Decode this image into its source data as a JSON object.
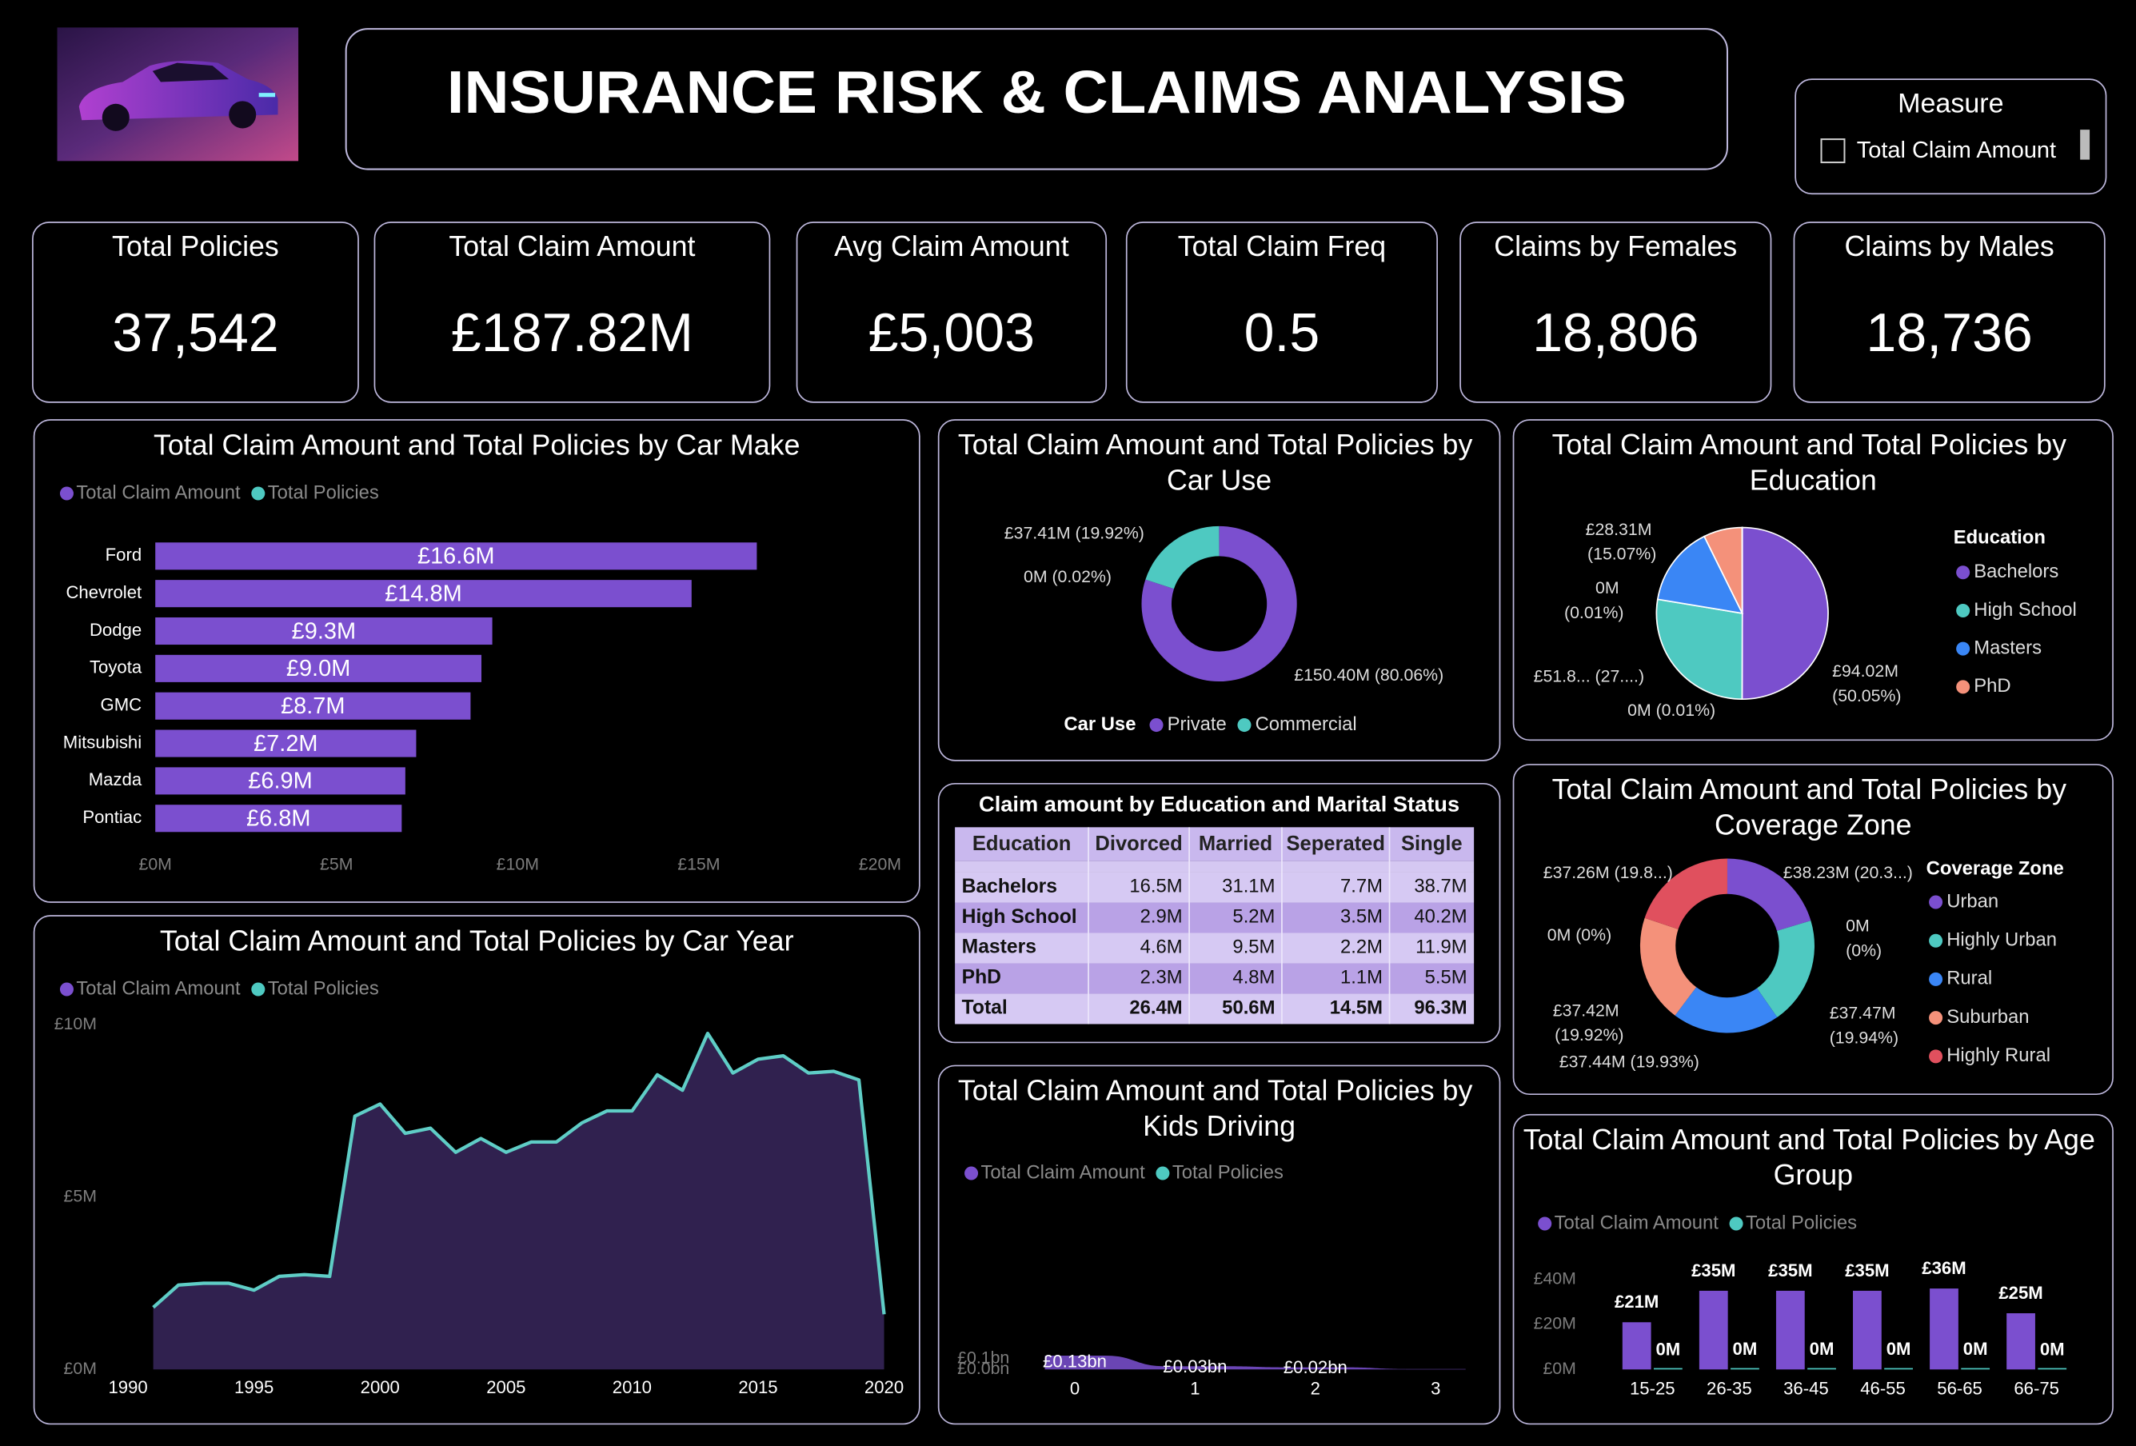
{
  "header": {
    "title": "INSURANCE RISK & CLAIMS ANALYSIS"
  },
  "slicer": {
    "title": "Measure",
    "options": [
      "Total Claim Amount"
    ]
  },
  "kpis": [
    {
      "label": "Total Policies",
      "value": "37,542"
    },
    {
      "label": "Total Claim Amount",
      "value": "£187.82M"
    },
    {
      "label": "Avg Claim Amount",
      "value": "£5,003"
    },
    {
      "label": "Total Claim Freq",
      "value": "0.5"
    },
    {
      "label": "Claims by Females",
      "value": "18,806"
    },
    {
      "label": "Claims by Males",
      "value": "18,736"
    }
  ],
  "table": {
    "title": "Claim amount by Education and Marital Status",
    "columns": [
      "Education",
      "Divorced",
      "Married",
      "Seperated",
      "Single"
    ],
    "rows": [
      [
        "Bachelors",
        "16.5M",
        "31.1M",
        "7.7M",
        "38.7M"
      ],
      [
        "High School",
        "2.9M",
        "5.2M",
        "3.5M",
        "40.2M"
      ],
      [
        "Masters",
        "4.6M",
        "9.5M",
        "2.2M",
        "11.9M"
      ],
      [
        "PhD",
        "2.3M",
        "4.8M",
        "1.1M",
        "5.5M"
      ],
      [
        "Total",
        "26.4M",
        "50.6M",
        "14.5M",
        "96.3M"
      ]
    ]
  },
  "chart_data": [
    {
      "type": "hbar",
      "title": "Total Claim Amount and Total Policies by Car Make",
      "legend": [
        {
          "name": "Total Claim Amount",
          "color": "#7b4fcf"
        },
        {
          "name": "Total Policies",
          "color": "#4ec9c1"
        }
      ],
      "categories": [
        "Ford",
        "Chevrolet",
        "Dodge",
        "Toyota",
        "GMC",
        "Mitsubishi",
        "Mazda",
        "Pontiac"
      ],
      "values": [
        16.6,
        14.8,
        9.3,
        9.0,
        8.7,
        7.2,
        6.9,
        6.8
      ],
      "value_labels": [
        "£16.6M",
        "£14.8M",
        "£9.3M",
        "£9.0M",
        "£8.7M",
        "£7.2M",
        "£6.9M",
        "£6.8M"
      ],
      "xlim": [
        0,
        20
      ],
      "xticks": [
        {
          "value": 0,
          "label": "£0M"
        },
        {
          "value": 5,
          "label": "£5M"
        },
        {
          "value": 10,
          "label": "£10M"
        },
        {
          "value": 15,
          "label": "£15M"
        },
        {
          "value": 20,
          "label": "£20M"
        }
      ]
    },
    {
      "type": "area",
      "title": "Total Claim Amount and Total Policies by Car Year",
      "legend": [
        {
          "name": "Total Claim Amount",
          "color": "#7b4fcf"
        },
        {
          "name": "Total Policies",
          "color": "#4ec9c1"
        }
      ],
      "x": [
        1991,
        1992,
        1993,
        1994,
        1995,
        1996,
        1997,
        1998,
        1999,
        2000,
        2001,
        2002,
        2003,
        2004,
        2005,
        2006,
        2007,
        2008,
        2009,
        2010,
        2011,
        2012,
        2013,
        2014,
        2015,
        2016,
        2017,
        2018,
        2019,
        2020
      ],
      "values": [
        1.8,
        2.45,
        2.5,
        2.5,
        2.3,
        2.7,
        2.75,
        2.7,
        7.35,
        7.7,
        6.85,
        7.0,
        6.3,
        6.7,
        6.3,
        6.6,
        6.6,
        7.15,
        7.5,
        7.5,
        8.55,
        8.1,
        9.75,
        8.6,
        9.0,
        9.1,
        8.6,
        8.65,
        8.4,
        1.6
      ],
      "fill": "#30214f",
      "stroke": "#5fcdc6",
      "xlim": [
        1990,
        2020
      ],
      "xticks": [
        1990,
        1995,
        2000,
        2005,
        2010,
        2015,
        2020
      ],
      "ylim": [
        0,
        10
      ],
      "yticks": [
        {
          "value": 0,
          "label": "£0M"
        },
        {
          "value": 5,
          "label": "£5M"
        },
        {
          "value": 10,
          "label": "£10M"
        }
      ]
    },
    {
      "type": "donut",
      "title": "Total Claim Amount and Total Policies by Car Use",
      "legend_title": "Car Use",
      "categories": [
        "Private",
        "Commercial",
        null
      ],
      "values": [
        150.4,
        37.41,
        0.04
      ],
      "value_labels": [
        "£150.40M (80.06%)",
        "£37.41M (19.92%)",
        "0M (0.02%)"
      ],
      "colors": [
        "#7b4fcf",
        "#4ec9c1"
      ]
    },
    {
      "type": "pie",
      "title": "Total Claim Amount and Total Policies by Education",
      "legend_title": "Education",
      "categories": [
        "Bachelors",
        "High School",
        "Masters",
        "PhD",
        null,
        null
      ],
      "values": [
        94.02,
        51.8,
        28.31,
        13.7,
        0.02,
        0.02
      ],
      "value_labels": [
        "£94.02M (50.05%)",
        "£51.8... (27....)",
        "£28.31M (15.07%)",
        null,
        "0M (0.01%)",
        "0M (0.01%)"
      ],
      "colors": [
        "#7b4fcf",
        "#4ec9c1",
        "#3a86f5",
        "#f4917a"
      ]
    },
    {
      "type": "donut",
      "title": "Total Claim Amount and Total Policies by Coverage Zone",
      "legend_title": "Coverage Zone",
      "categories": [
        "Urban",
        "Highly Urban",
        "Rural",
        "Suburban",
        "Highly Rural",
        null,
        null
      ],
      "values": [
        38.23,
        37.47,
        37.44,
        37.42,
        37.26,
        0,
        0
      ],
      "value_labels": [
        "£38.23M (20.3...)",
        "£37.47M (19.94%)",
        "£37.44M (19.93%)",
        "£37.42M (19.92%)",
        "£37.26M (19.8...)",
        "0M (0%)",
        "0M (0%)"
      ],
      "colors": [
        "#7b4fcf",
        "#4ec9c1",
        "#3a86f5",
        "#f4917a",
        "#e0505e"
      ]
    },
    {
      "type": "step-area",
      "title": "Total Claim Amount and Total Policies by Kids Driving",
      "legend": [
        {
          "name": "Total Claim Amount",
          "color": "#7b4fcf"
        },
        {
          "name": "Total Policies",
          "color": "#4ec9c1"
        }
      ],
      "categories": [
        "0",
        "1",
        "2",
        "3"
      ],
      "values": [
        0.13,
        0.03,
        0.02,
        0.004
      ],
      "value_labels": [
        "£0.13bn",
        "£0.03bn",
        "£0.02bn",
        null
      ],
      "fill": "#6a45b4",
      "ylim": [
        0,
        0.14
      ],
      "yticks": [
        {
          "value": 0,
          "label": "£0.0bn"
        },
        {
          "value": 0.1,
          "label": "£0.1bn"
        }
      ]
    },
    {
      "type": "column",
      "title": "Total Claim Amount and Total Policies by Age Group",
      "categories": [
        "15-25",
        "26-35",
        "36-45",
        "46-55",
        "56-65",
        "66-75"
      ],
      "series": [
        {
          "name": "Total Claim Amount",
          "color": "#7b4fcf",
          "values": [
            21,
            35,
            35,
            35,
            36,
            25
          ],
          "value_labels": [
            "£21M",
            "£35M",
            "£35M",
            "£35M",
            "£36M",
            "£25M"
          ]
        },
        {
          "name": "Total Policies",
          "color": "#4ec9c1",
          "values": [
            0.004,
            0.007,
            0.007,
            0.007,
            0.007,
            0.005
          ],
          "value_labels": [
            "0M",
            "0M",
            "0M",
            "0M",
            "0M",
            "0M"
          ]
        }
      ],
      "ylim": [
        0,
        45
      ],
      "yticks": [
        {
          "value": 0,
          "label": "£0M"
        },
        {
          "value": 20,
          "label": "£20M"
        },
        {
          "value": 40,
          "label": "£40M"
        }
      ]
    }
  ]
}
